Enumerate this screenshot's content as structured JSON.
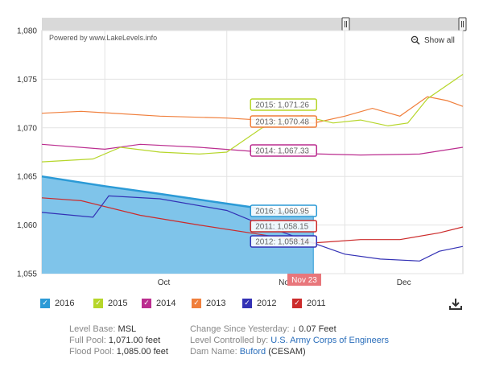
{
  "chart_data": {
    "type": "line",
    "ylim": [
      1055,
      1080
    ],
    "yticks": [
      "1,055",
      "1,060",
      "1,065",
      "1,070",
      "1,075",
      "1,080"
    ],
    "xlim": [
      "2016-09-15",
      "2016-12-31"
    ],
    "xticks": [
      {
        "label": "Oct",
        "date": "2016-10-16"
      },
      {
        "label": "Nov",
        "date": "2016-11-16"
      },
      {
        "label": "Dec",
        "date": "2016-12-16"
      }
    ],
    "navigator_label": "Nov 23",
    "series": [
      {
        "name": "2016",
        "color": "#2b9ad6",
        "style": "area",
        "x": [
          "2016-09-15",
          "2016-10-01",
          "2016-10-15",
          "2016-11-01",
          "2016-11-15",
          "2016-11-23"
        ],
        "y": [
          1065.0,
          1064.0,
          1063.2,
          1062.2,
          1061.4,
          1060.95
        ]
      },
      {
        "name": "2015",
        "color": "#b6d62a",
        "x": [
          "2016-09-15",
          "2016-09-28",
          "2016-10-05",
          "2016-10-15",
          "2016-10-25",
          "2016-11-01",
          "2016-11-10",
          "2016-11-20",
          "2016-11-28",
          "2016-12-05",
          "2016-12-12",
          "2016-12-17",
          "2016-12-22",
          "2016-12-31"
        ],
        "y": [
          1066.5,
          1066.8,
          1068.0,
          1067.5,
          1067.3,
          1067.5,
          1070.0,
          1071.26,
          1070.5,
          1070.8,
          1070.2,
          1070.5,
          1073.0,
          1075.5
        ]
      },
      {
        "name": "2014",
        "color": "#bb2d8f",
        "x": [
          "2016-09-15",
          "2016-10-01",
          "2016-10-10",
          "2016-10-25",
          "2016-11-10",
          "2016-11-23",
          "2016-12-05",
          "2016-12-20",
          "2016-12-31"
        ],
        "y": [
          1068.3,
          1067.8,
          1068.3,
          1068.0,
          1067.5,
          1067.33,
          1067.2,
          1067.3,
          1068.0
        ]
      },
      {
        "name": "2013",
        "color": "#f07f3c",
        "x": [
          "2016-09-15",
          "2016-09-25",
          "2016-10-15",
          "2016-11-01",
          "2016-11-23",
          "2016-12-01",
          "2016-12-08",
          "2016-12-15",
          "2016-12-22",
          "2016-12-27",
          "2016-12-31"
        ],
        "y": [
          1071.5,
          1071.7,
          1071.2,
          1071.0,
          1070.48,
          1071.2,
          1072.0,
          1071.2,
          1073.2,
          1072.8,
          1072.2
        ]
      },
      {
        "name": "2012",
        "color": "#3331b5",
        "x": [
          "2016-09-15",
          "2016-09-28",
          "2016-10-02",
          "2016-10-15",
          "2016-11-01",
          "2016-11-10",
          "2016-11-23",
          "2016-12-01",
          "2016-12-10",
          "2016-12-20",
          "2016-12-25",
          "2016-12-31"
        ],
        "y": [
          1061.3,
          1060.8,
          1063.0,
          1062.7,
          1061.5,
          1060.0,
          1058.14,
          1057.0,
          1056.5,
          1056.3,
          1057.3,
          1057.8
        ]
      },
      {
        "name": "2011",
        "color": "#cc2b2b",
        "x": [
          "2016-09-15",
          "2016-09-25",
          "2016-10-10",
          "2016-10-25",
          "2016-11-10",
          "2016-11-23",
          "2016-11-28",
          "2016-12-05",
          "2016-12-15",
          "2016-12-25",
          "2016-12-31"
        ],
        "y": [
          1062.8,
          1062.5,
          1061.0,
          1060.0,
          1059.0,
          1058.15,
          1058.3,
          1058.5,
          1058.5,
          1059.2,
          1059.8
        ]
      }
    ],
    "tooltips": [
      {
        "label": "2015: 1,071.26",
        "series": "2015"
      },
      {
        "label": "2013: 1,070.48",
        "series": "2013"
      },
      {
        "label": "2014: 1,067.33",
        "series": "2014"
      },
      {
        "label": "2016: 1,060.95",
        "series": "2016"
      },
      {
        "label": "2011: 1,058.15",
        "series": "2011"
      },
      {
        "label": "2012: 1,058.14",
        "series": "2012"
      }
    ],
    "legend_placement": "bottom",
    "grid": true
  },
  "credit": "Powered by www.LakeLevels.info",
  "show_all": "Show all",
  "legend": [
    {
      "label": "2016",
      "color": "#2b9ad6"
    },
    {
      "label": "2015",
      "color": "#b6d62a"
    },
    {
      "label": "2014",
      "color": "#bb2d8f"
    },
    {
      "label": "2013",
      "color": "#f07f3c"
    },
    {
      "label": "2012",
      "color": "#3331b5"
    },
    {
      "label": "2011",
      "color": "#cc2b2b"
    }
  ],
  "legend_check": "✓",
  "info": {
    "level_base_label": "Level Base:",
    "level_base_value": "MSL",
    "full_pool_label": "Full Pool:",
    "full_pool_value": "1,071.00 feet",
    "flood_pool_label": "Flood Pool:",
    "flood_pool_value": "1,085.00 feet",
    "change_label": "Change Since Yesterday:",
    "change_arrow": "↓",
    "change_value": "0.07 Feet",
    "controlled_label": "Level Controlled by:",
    "controlled_value": "U.S. Army Corps of Engineers",
    "dam_label": "Dam Name:",
    "dam_value": "Buford",
    "dam_suffix": "(CESAM)"
  }
}
